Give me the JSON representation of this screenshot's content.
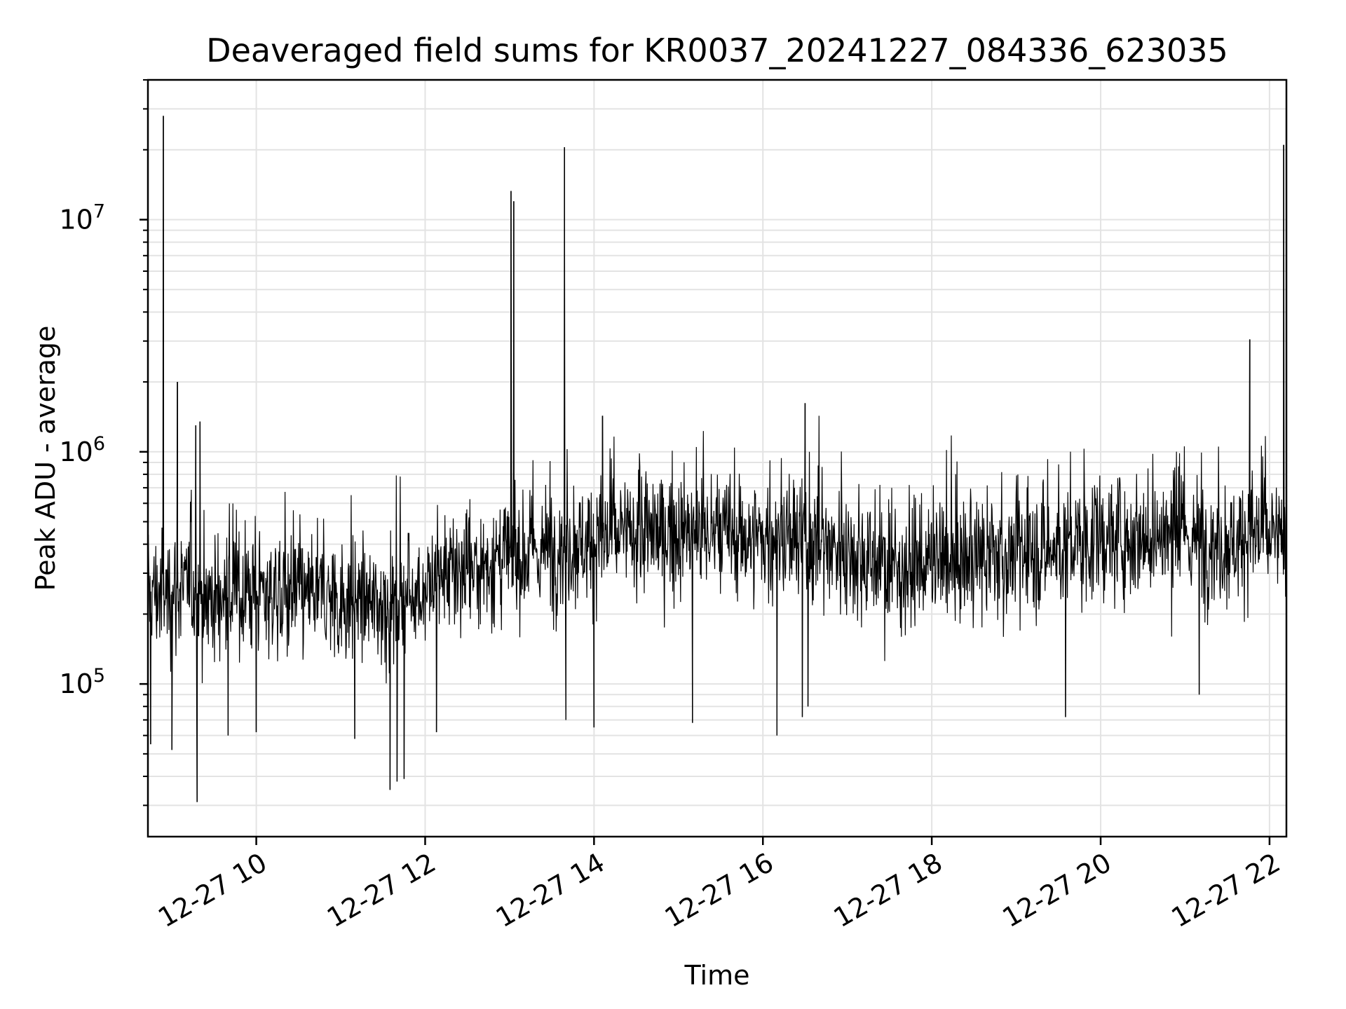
{
  "chart_data": {
    "type": "line",
    "title": "Deaveraged field sums for KR0037_20241227_084336_623035",
    "xlabel": "Time",
    "ylabel": "Peak ADU - average",
    "yscale": "log",
    "xlim": [
      "2024-12-27 08:43",
      "2024-12-27 22:12"
    ],
    "ylim": [
      22000,
      40000000
    ],
    "x_ticks": [
      "12-27 10",
      "12-27 12",
      "12-27 14",
      "12-27 16",
      "12-27 18",
      "12-27 20",
      "12-27 22"
    ],
    "y_ticks": [
      {
        "base": "10",
        "exp": "5",
        "value": 100000
      },
      {
        "base": "10",
        "exp": "6",
        "value": 1000000
      },
      {
        "base": "10",
        "exp": "7",
        "value": 10000000
      }
    ],
    "grid": true,
    "line_color": "#000000",
    "series": [
      {
        "x": [
          "2024-12-27 08:45",
          "2024-12-27 08:55",
          "2024-12-27 09:05",
          "2024-12-27 09:15",
          "2024-12-27 09:30",
          "2024-12-27 10:00",
          "2024-12-27 10:30",
          "2024-12-27 11:00",
          "2024-12-27 11:30",
          "2024-12-27 12:00",
          "2024-12-27 12:30",
          "2024-12-27 13:00",
          "2024-12-27 13:30",
          "2024-12-27 14:00",
          "2024-12-27 14:30",
          "2024-12-27 15:00",
          "2024-12-27 15:30",
          "2024-12-27 16:00",
          "2024-12-27 16:30",
          "2024-12-27 17:00",
          "2024-12-27 17:30",
          "2024-12-27 18:00",
          "2024-12-27 18:30",
          "2024-12-27 19:00",
          "2024-12-27 19:30",
          "2024-12-27 20:00",
          "2024-12-27 20:30",
          "2024-12-27 21:00",
          "2024-12-27 21:30",
          "2024-12-27 21:50",
          "2024-12-27 22:10"
        ],
        "values": [
          250000,
          240000,
          260000,
          250000,
          230000,
          250000,
          240000,
          230000,
          220000,
          260000,
          310000,
          350000,
          380000,
          420000,
          440000,
          450000,
          440000,
          420000,
          410000,
          380000,
          310000,
          330000,
          340000,
          360000,
          380000,
          420000,
          440000,
          420000,
          400000,
          450000,
          400000
        ]
      }
    ],
    "spikes": [
      {
        "x": "2024-12-27 08:54",
        "y": 28000000
      },
      {
        "x": "2024-12-27 09:04",
        "y": 2000000
      },
      {
        "x": "2024-12-27 09:17",
        "y": 1300000
      },
      {
        "x": "2024-12-27 09:20",
        "y": 1350000
      },
      {
        "x": "2024-12-27 13:01",
        "y": 13300000
      },
      {
        "x": "2024-12-27 13:03",
        "y": 12000000
      },
      {
        "x": "2024-12-27 13:39",
        "y": 20500000
      },
      {
        "x": "2024-12-27 14:06",
        "y": 1430000
      },
      {
        "x": "2024-12-27 16:30",
        "y": 1620000
      },
      {
        "x": "2024-12-27 21:46",
        "y": 3050000
      },
      {
        "x": "2024-12-27 22:10",
        "y": 21000000
      }
    ],
    "dips": [
      {
        "x": "2024-12-27 08:45",
        "y": 55000
      },
      {
        "x": "2024-12-27 09:00",
        "y": 52000
      },
      {
        "x": "2024-12-27 09:18",
        "y": 31000
      },
      {
        "x": "2024-12-27 09:40",
        "y": 60000
      },
      {
        "x": "2024-12-27 10:00",
        "y": 62000
      },
      {
        "x": "2024-12-27 11:10",
        "y": 58000
      },
      {
        "x": "2024-12-27 11:35",
        "y": 35000
      },
      {
        "x": "2024-12-27 11:40",
        "y": 38000
      },
      {
        "x": "2024-12-27 11:45",
        "y": 39000
      },
      {
        "x": "2024-12-27 12:08",
        "y": 62000
      },
      {
        "x": "2024-12-27 13:40",
        "y": 70000
      },
      {
        "x": "2024-12-27 14:00",
        "y": 65000
      },
      {
        "x": "2024-12-27 15:10",
        "y": 68000
      },
      {
        "x": "2024-12-27 16:10",
        "y": 60000
      },
      {
        "x": "2024-12-27 16:28",
        "y": 72000
      },
      {
        "x": "2024-12-27 16:32",
        "y": 80000
      },
      {
        "x": "2024-12-27 19:35",
        "y": 72000
      },
      {
        "x": "2024-12-27 21:10",
        "y": 90000
      }
    ]
  }
}
